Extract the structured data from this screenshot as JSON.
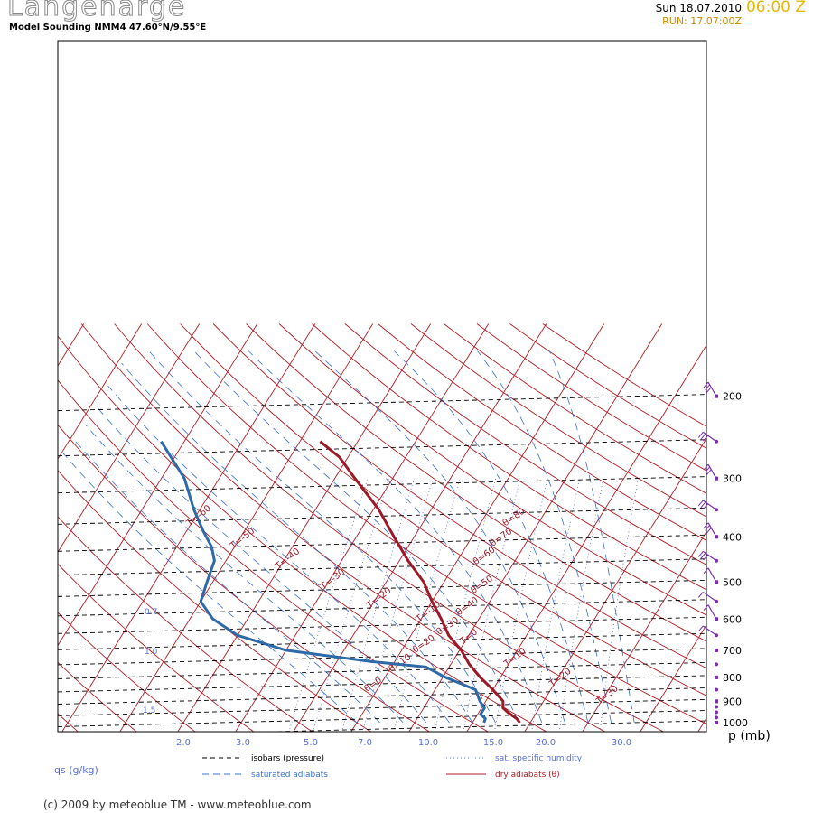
{
  "header": {
    "station": "Langenarge",
    "subtitle": "Model Sounding NMM4 47.60°N/9.55°E",
    "date": "Sun 18.07.2010",
    "time": "06:00 Z",
    "run": "RUN: 17.07:00Z"
  },
  "footer": {
    "copyright": "(c) 2009 by meteoblue TM - www.meteoblue.com"
  },
  "colors": {
    "isobar": "#000000",
    "dry_adiabat": "#b01c24",
    "moist_adiabat": "#3a6fd0",
    "humidity": "#5a6fd8",
    "temperature": "#9a1a28",
    "dewpoint": "#2e6aa8",
    "wind": "#7a2fb0",
    "label": "#9a1a28"
  },
  "chart_data": {
    "type": "line",
    "diagram": "skew-T log-p",
    "y_label": "p (mb)",
    "y_ticks": [
      1000,
      900,
      800,
      700,
      600,
      500,
      400,
      300,
      200
    ],
    "q_label": "qs (g/kg)",
    "q_ticks": [
      "2.0",
      "3.0",
      "5.0",
      "7.0",
      "10.0",
      "15.0",
      "20.0",
      "30.0"
    ],
    "q_ticks_left": [
      "0.7",
      "1.0",
      "1.5"
    ],
    "temp_labels": [
      "T=-60",
      "T=-50",
      "T=-40",
      "T=-30",
      "T=-20",
      "T=-10",
      "T=0",
      "T=10",
      "T=20",
      "T=30"
    ],
    "theta_labels": [
      "θ=0",
      "θ=10",
      "θ=20",
      "θ=30",
      "θ=40",
      "θ=50",
      "θ=60",
      "θ=70",
      "θ=80"
    ],
    "legend": [
      {
        "label": "isobars (pressure)",
        "style": "black-dashed"
      },
      {
        "label": "saturated adiabats",
        "style": "blue-dashed"
      },
      {
        "label": "sat. specific humidity",
        "style": "blue-dotted"
      },
      {
        "label": "dry adiabats (θ)",
        "style": "red-solid"
      }
    ],
    "series": [
      {
        "points": [
          [
            1000,
            18.2
          ],
          [
            980,
            17.2
          ],
          [
            950,
            15.0
          ],
          [
            930,
            13.7
          ],
          [
            900,
            13.0
          ],
          [
            850,
            10.0
          ],
          [
            800,
            6.5
          ],
          [
            750,
            3.2
          ],
          [
            700,
            0.3
          ],
          [
            650,
            -3.5
          ],
          [
            600,
            -6.5
          ],
          [
            550,
            -10.0
          ],
          [
            500,
            -13.5
          ],
          [
            450,
            -18.5
          ],
          [
            400,
            -23.5
          ],
          [
            350,
            -29.0
          ],
          [
            300,
            -36.5
          ],
          [
            270,
            -41.5
          ],
          [
            250,
            -46.5
          ]
        ]
      },
      {
        "points": [
          [
            1000,
            12.0
          ],
          [
            980,
            11.8
          ],
          [
            960,
            10.5
          ],
          [
            930,
            10.5
          ],
          [
            900,
            9.0
          ],
          [
            850,
            7.0
          ],
          [
            800,
            0.5
          ],
          [
            760,
            -4.0
          ],
          [
            740,
            -14.0
          ],
          [
            700,
            -30.0
          ],
          [
            650,
            -40.0
          ],
          [
            600,
            -46.0
          ],
          [
            550,
            -50.0
          ],
          [
            500,
            -51.0
          ],
          [
            450,
            -52.0
          ],
          [
            420,
            -54.0
          ],
          [
            390,
            -57.0
          ],
          [
            350,
            -61.0
          ],
          [
            300,
            -66.0
          ],
          [
            250,
            -74.0
          ]
        ]
      }
    ],
    "wind_barbs_pressure": [
      1000,
      975,
      950,
      925,
      900,
      850,
      800,
      750,
      700,
      650,
      600,
      550,
      500,
      450,
      400,
      350,
      300,
      250,
      200
    ]
  }
}
